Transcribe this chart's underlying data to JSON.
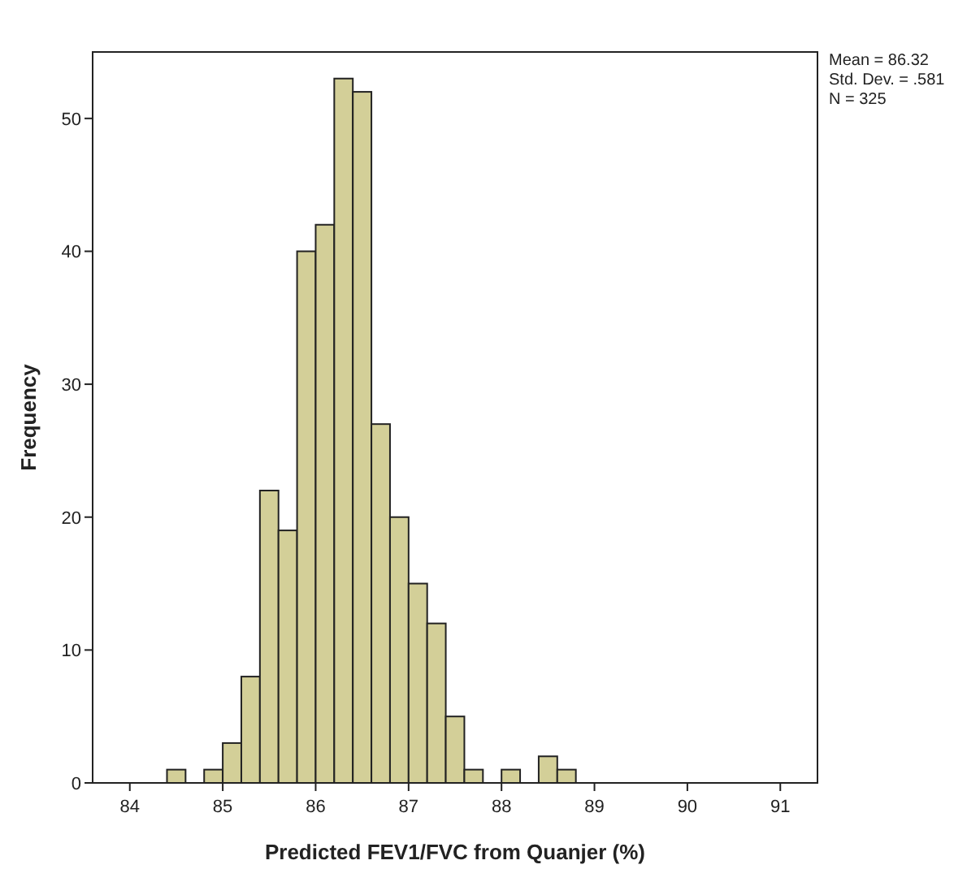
{
  "chart_data": {
    "type": "histogram",
    "xlabel": "Predicted FEV1/FVC from Quanjer (%)",
    "ylabel": "Frequency",
    "bins": [
      84.4,
      84.6,
      84.8,
      85.0,
      85.2,
      85.4,
      85.6,
      85.8,
      86.0,
      86.2,
      86.4,
      86.6,
      86.8,
      87.0,
      87.2,
      87.4,
      87.6,
      87.8,
      88.0,
      88.2,
      88.4,
      88.6,
      88.8
    ],
    "values": [
      1,
      0,
      1,
      3,
      8,
      22,
      19,
      40,
      42,
      53,
      52,
      27,
      20,
      15,
      12,
      5,
      1,
      0,
      1,
      0,
      2,
      1
    ],
    "color": "#d3cf98",
    "xlim": [
      83.6,
      91.4
    ],
    "xticks": [
      84,
      85,
      86,
      87,
      88,
      89,
      90,
      91
    ],
    "ylim": [
      0,
      55
    ],
    "yticks": [
      0,
      10,
      20,
      30,
      40,
      50
    ],
    "grid": false,
    "annotations": [
      "Mean = 86.32",
      "Std. Dev. = .581",
      "N = 325"
    ]
  }
}
